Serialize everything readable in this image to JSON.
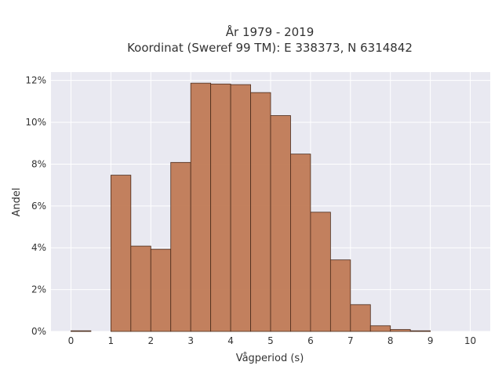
{
  "chart_data": {
    "type": "bar",
    "title_line1": "År 1979 - 2019",
    "title_line2": "Koordinat (Sweref 99 TM): E 338373, N 6314842",
    "xlabel": "Vågperiod (s)",
    "ylabel": "Andel",
    "xlim": [
      -0.5,
      10.5
    ],
    "ylim": [
      0,
      12.4
    ],
    "xticks": [
      0,
      1,
      2,
      3,
      4,
      5,
      6,
      7,
      8,
      9,
      10
    ],
    "yticks": [
      0,
      2,
      4,
      6,
      8,
      10,
      12
    ],
    "y_tick_suffix": "%",
    "bin_width": 0.5,
    "bins": [
      {
        "x0": 0.0,
        "value": 0.03
      },
      {
        "x0": 0.5,
        "value": 0.0
      },
      {
        "x0": 1.0,
        "value": 7.47
      },
      {
        "x0": 1.5,
        "value": 4.08
      },
      {
        "x0": 2.0,
        "value": 3.93
      },
      {
        "x0": 2.5,
        "value": 8.08
      },
      {
        "x0": 3.0,
        "value": 11.87
      },
      {
        "x0": 3.5,
        "value": 11.83
      },
      {
        "x0": 4.0,
        "value": 11.8
      },
      {
        "x0": 4.5,
        "value": 11.42
      },
      {
        "x0": 5.0,
        "value": 10.32
      },
      {
        "x0": 5.5,
        "value": 8.48
      },
      {
        "x0": 6.0,
        "value": 5.7
      },
      {
        "x0": 6.5,
        "value": 3.42
      },
      {
        "x0": 7.0,
        "value": 1.28
      },
      {
        "x0": 7.5,
        "value": 0.27
      },
      {
        "x0": 8.0,
        "value": 0.09
      },
      {
        "x0": 8.5,
        "value": 0.03
      }
    ],
    "grid": true,
    "colors": {
      "bar_fill": "#c07a55",
      "bar_edge": "#4a2a1a",
      "plot_bg": "#e9e9f1",
      "grid": "#ffffff"
    }
  }
}
